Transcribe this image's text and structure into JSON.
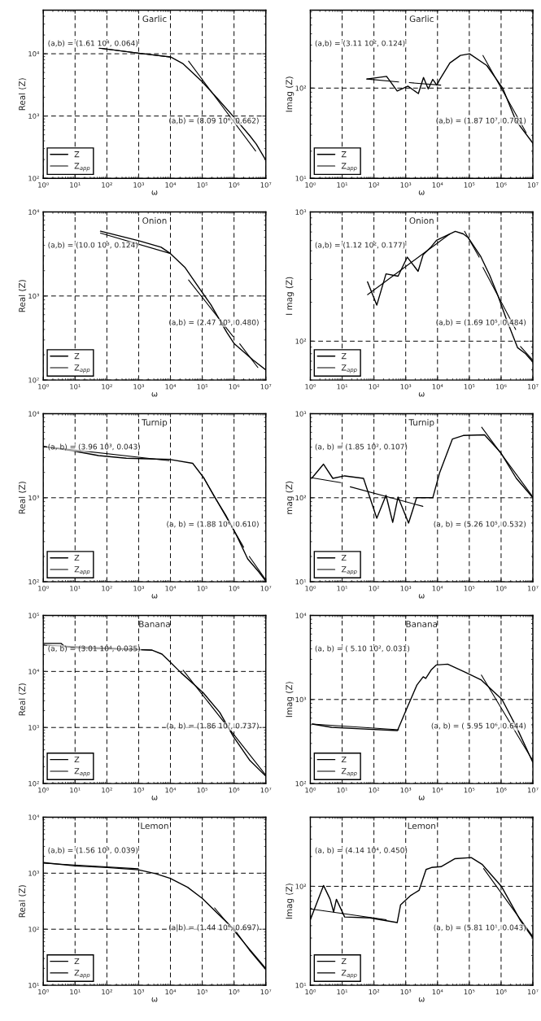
{
  "chart_data": [
    {
      "type": "line",
      "title": "Garlic",
      "xlabel": "ω",
      "ylabel": "Real (Z)",
      "log": "xy",
      "grid": true,
      "legend": "bottom left",
      "xlim": [
        1,
        10000000
      ],
      "ylim": [
        100,
        50000
      ],
      "xticks": [
        {
          "value": 1,
          "label": "10⁰"
        },
        {
          "value": 10,
          "label": "10¹"
        },
        {
          "value": 100,
          "label": "10²"
        },
        {
          "value": 1000,
          "label": "10³"
        },
        {
          "value": 10000,
          "label": "10⁴"
        },
        {
          "value": 100000,
          "label": "10⁵"
        },
        {
          "value": 1000000,
          "label": "10⁶"
        },
        {
          "value": 10000000,
          "label": "10⁷"
        }
      ],
      "yticks": [
        {
          "value": 100,
          "label": "10²"
        },
        {
          "value": 1000,
          "label": "10³"
        },
        {
          "value": 10000,
          "label": "10⁴"
        }
      ],
      "series": [
        {
          "name": "Z",
          "color": "#000000",
          "x": [
            58,
            1000,
            10000,
            25100,
            100000,
            316000,
            1000000,
            3160000,
            5010000,
            10000000
          ],
          "values": [
            12300,
            10200,
            8900,
            6900,
            3550,
            1860,
            955,
            480,
            355,
            195
          ]
        },
        {
          "name": "Z$_{app}$",
          "color": "#000000",
          "x": [
            58,
            10000
          ],
          "values": [
            12300,
            8800
          ]
        },
        {
          "color": "#000000",
          "x": [
            37200,
            4790000
          ],
          "values": [
            7600,
            275
          ]
        }
      ],
      "annotations": [
        "(a,b) = (1.61 10⁴, 0.064)",
        "(a,b) = (8.09 10⁶, 0.662)"
      ]
    },
    {
      "type": "line",
      "title": "Garlic",
      "xlabel": "ω",
      "ylabel": "Imag (Z)",
      "log": "xy",
      "grid": true,
      "legend": "bottom left",
      "xlim": [
        1,
        10000000
      ],
      "ylim": [
        10,
        730
      ],
      "xticks": [
        {
          "value": 1,
          "label": "10⁰"
        },
        {
          "value": 10,
          "label": "10¹"
        },
        {
          "value": 100,
          "label": "10²"
        },
        {
          "value": 1000,
          "label": "10³"
        },
        {
          "value": 10000,
          "label": "10⁴"
        },
        {
          "value": 100000,
          "label": "10⁵"
        },
        {
          "value": 1000000,
          "label": "10⁶"
        },
        {
          "value": 10000000,
          "label": "10⁷"
        }
      ],
      "yticks": [
        {
          "value": 10,
          "label": "10¹"
        },
        {
          "value": 100,
          "label": "10²"
        }
      ],
      "series": [
        {
          "name": "Z",
          "color": "#000000",
          "x": [
            60,
            250,
            540,
            1170,
            2500,
            3630,
            5100,
            7100,
            9500,
            11500,
            24500,
            52500,
            102000,
            355000,
            1120000,
            2880000,
            10000000
          ],
          "values": [
            126,
            135,
            93,
            105,
            87,
            131,
            98,
            125,
            108,
            123,
            190,
            230,
            240,
            178,
            100,
            44,
            24.5
          ]
        },
        {
          "name": "Z$_{app}$",
          "color": "#000000",
          "x": [
            60,
            600
          ],
          "values": [
            126,
            117
          ]
        },
        {
          "color": "#000000",
          "x": [
            1290,
            12600
          ],
          "values": [
            115,
            108
          ]
        },
        {
          "color": "#000000",
          "x": [
            269000,
            6170000
          ],
          "values": [
            230,
            32
          ]
        }
      ],
      "annotations": [
        "(a,b) = (3.11 10², 0.124)",
        "(a,b) = (1.87 10⁷, 0.701)"
      ]
    },
    {
      "type": "line",
      "title": "Onion",
      "xlabel": "ω",
      "ylabel": "Real (Z)",
      "log": "xy",
      "grid": true,
      "legend": "bottom left",
      "xlim": [
        1,
        10000000
      ],
      "ylim": [
        100,
        10000
      ],
      "xticks": [
        {
          "value": 1,
          "label": "10⁰"
        },
        {
          "value": 10,
          "label": "10¹"
        },
        {
          "value": 100,
          "label": "10²"
        },
        {
          "value": 1000,
          "label": "10³"
        },
        {
          "value": 10000,
          "label": "10⁴"
        },
        {
          "value": 100000,
          "label": "10⁵"
        },
        {
          "value": 1000000,
          "label": "10⁶"
        },
        {
          "value": 10000000,
          "label": "10⁷"
        }
      ],
      "yticks": [
        {
          "value": 100,
          "label": "10²"
        },
        {
          "value": 1000,
          "label": "10³"
        },
        {
          "value": 10000,
          "label": "10⁴"
        }
      ],
      "series": [
        {
          "name": "Z",
          "color": "#000000",
          "x": [
            63,
            1000,
            5100,
            10000,
            28200,
            87100,
            186000,
            589000,
            1020000,
            3890000,
            10000000
          ],
          "values": [
            5900,
            4550,
            3800,
            3200,
            2200,
            1190,
            790,
            370,
            270,
            174,
            132
          ]
        },
        {
          "name": "Z$_{app}$",
          "color": "#000000",
          "x": [
            63,
            10000
          ],
          "values": [
            5600,
            3200
          ]
        },
        {
          "color": "#000000",
          "x": [
            37200,
            933000
          ],
          "values": [
            1550,
            330
          ]
        },
        {
          "color": "#000000",
          "x": [
            1510000,
            5620000
          ],
          "values": [
            270,
            141
          ]
        }
      ],
      "annotations": [
        "(a,b) = (10.0 10³, 0.124)",
        "(a,b) = (2.47 10⁵, 0.480)"
      ]
    },
    {
      "type": "line",
      "title": "Onion",
      "xlabel": "ω",
      "ylabel": "I mag (Z)",
      "log": "xy",
      "grid": true,
      "legend": "bottom left",
      "xlim": [
        1,
        10000000
      ],
      "ylim": [
        50,
        1000
      ],
      "xticks": [
        {
          "value": 1,
          "label": "10⁰"
        },
        {
          "value": 10,
          "label": "10¹"
        },
        {
          "value": 100,
          "label": "10²"
        },
        {
          "value": 1000,
          "label": "10³"
        },
        {
          "value": 10000,
          "label": "10⁴"
        },
        {
          "value": 100000,
          "label": "10⁵"
        },
        {
          "value": 1000000,
          "label": "10⁶"
        },
        {
          "value": 10000000,
          "label": "10⁷"
        }
      ],
      "yticks": [
        {
          "value": 100,
          "label": "10²"
        },
        {
          "value": 1000,
          "label": "10³"
        }
      ],
      "series": [
        {
          "name": "Z",
          "color": "#000000",
          "x": [
            63,
            123,
            240,
            575,
            1120,
            2450,
            3550,
            6300,
            9300,
            36300,
            64600,
            93300,
            224000,
            437000,
            776000,
            1410000,
            3310000,
            5890000,
            10000000
          ],
          "values": [
            288,
            190,
            332,
            318,
            447,
            347,
            468,
            537,
            603,
            708,
            676,
            631,
            457,
            324,
            229,
            152,
            89,
            80,
            69
          ]
        },
        {
          "name": "Z$_{app}$",
          "color": "#000000",
          "x": [
            63,
            24500
          ],
          "values": [
            229,
            676
          ]
        },
        {
          "color": "#000000",
          "x": [
            70800,
            204000
          ],
          "values": [
            708,
            447
          ]
        },
        {
          "color": "#000000",
          "x": [
            269000,
            2880000
          ],
          "values": [
            372,
            123
          ]
        },
        {
          "color": "#000000",
          "x": [
            4070000,
            10000000
          ],
          "values": [
            91,
            71
          ]
        }
      ],
      "annotations": [
        "(a,b) = (1.12 10², 0.177)",
        "(a,b) = (1.69 10⁵, 0.484)"
      ]
    },
    {
      "type": "line",
      "title": "Turnip",
      "xlabel": "ω",
      "ylabel": "Real (Z)",
      "log": "xy",
      "grid": true,
      "legend": "bottom left",
      "xlim": [
        1,
        10000000
      ],
      "ylim": [
        100,
        10000
      ],
      "xticks": [
        {
          "value": 1,
          "label": "10⁰"
        },
        {
          "value": 10,
          "label": "10¹"
        },
        {
          "value": 100,
          "label": "10²"
        },
        {
          "value": 1000,
          "label": "10³"
        },
        {
          "value": 10000,
          "label": "10⁴"
        },
        {
          "value": 100000,
          "label": "10⁵"
        },
        {
          "value": 1000000,
          "label": "10⁶"
        },
        {
          "value": 10000000,
          "label": "10⁷"
        }
      ],
      "yticks": [
        {
          "value": 100,
          "label": "10²"
        },
        {
          "value": 1000,
          "label": "10³"
        },
        {
          "value": 10000,
          "label": "10⁴"
        }
      ],
      "series": [
        {
          "name": "Z",
          "color": "#000000",
          "x": [
            1,
            7.4,
            55,
            410,
            10000,
            50100,
            110000,
            245000,
            550000,
            1230000,
            2690000,
            6030000,
            10000000
          ],
          "values": [
            4070,
            3650,
            3170,
            2950,
            2850,
            2570,
            1740,
            1020,
            620,
            350,
            187,
            131,
            102
          ]
        },
        {
          "name": "Z$_{app}$",
          "color": "#000000",
          "x": [
            1,
            9100
          ],
          "values": [
            4070,
            2760
          ]
        },
        {
          "color": "#000000",
          "x": [
            110000,
            2000000
          ],
          "values": [
            1740,
            258
          ]
        },
        {
          "color": "#000000",
          "x": [
            3020000,
            10000000
          ],
          "values": [
            200,
            105
          ]
        }
      ],
      "annotations": [
        "(a, b) = (3.96 10³, 0.043)",
        "(a, b) = (1.88 10⁶, 0.610)"
      ]
    },
    {
      "type": "line",
      "title": "Turnip",
      "xlabel": "ω",
      "ylabel": "mag (Z)",
      "log": "xy",
      "grid": true,
      "legend": "bottom left",
      "xlim": [
        1,
        10000000
      ],
      "ylim": [
        10,
        1000
      ],
      "xticks": [
        {
          "value": 1,
          "label": "10⁰"
        },
        {
          "value": 10,
          "label": "10¹"
        },
        {
          "value": 100,
          "label": "10²"
        },
        {
          "value": 1000,
          "label": "10³"
        },
        {
          "value": 10000,
          "label": "10⁴"
        },
        {
          "value": 100000,
          "label": "10⁵"
        },
        {
          "value": 1000000,
          "label": "10⁶"
        },
        {
          "value": 10000000,
          "label": "10⁷"
        }
      ],
      "yticks": [
        {
          "value": 10,
          "label": "10¹"
        },
        {
          "value": 100,
          "label": "10²"
        },
        {
          "value": 1000,
          "label": "10³"
        }
      ],
      "series": [
        {
          "name": "Z",
          "color": "#000000",
          "x": [
            1.1,
            2.6,
            5.1,
            12,
            47,
            123,
            240,
            390,
            575,
            1230,
            2200,
            7100,
            11500,
            29500,
            64600,
            302000,
            955000,
            3020000,
            10000000
          ],
          "values": [
            170,
            251,
            170,
            182,
            170,
            57,
            107,
            51,
            102,
            50,
            100,
            100,
            195,
            500,
            550,
            560,
            347,
            170,
            100
          ]
        },
        {
          "name": "Z$_{app}$",
          "color": "#000000",
          "x": [
            1,
            9.1
          ],
          "values": [
            174,
            151
          ]
        },
        {
          "color": "#000000",
          "x": [
            18,
            3470
          ],
          "values": [
            135,
            79
          ]
        },
        {
          "color": "#000000",
          "x": [
            245000,
            10000000
          ],
          "values": [
            690,
            102
          ]
        }
      ],
      "annotations": [
        "(a, b) = (1.85 10², 0.107)",
        "(a, b) = (5.26 10⁵, 0.532)"
      ]
    },
    {
      "type": "line",
      "title": "Banana",
      "xlabel": "ω",
      "ylabel": "Real (Z)",
      "log": "xy",
      "grid": true,
      "legend": "bottom left",
      "xlim": [
        1,
        10000000
      ],
      "ylim": [
        100,
        100000
      ],
      "xticks": [
        {
          "value": 1,
          "label": "10⁰"
        },
        {
          "value": 10,
          "label": "10¹"
        },
        {
          "value": 100,
          "label": "10²"
        },
        {
          "value": 1000,
          "label": "10³"
        },
        {
          "value": 10000,
          "label": "10⁴"
        },
        {
          "value": 100000,
          "label": "10⁵"
        },
        {
          "value": 1000000,
          "label": "10⁶"
        },
        {
          "value": 10000000,
          "label": "10⁷"
        }
      ],
      "yticks": [
        {
          "value": 100,
          "label": "10²"
        },
        {
          "value": 1000,
          "label": "10³"
        },
        {
          "value": 10000,
          "label": "10⁴"
        },
        {
          "value": 100000,
          "label": "10⁵"
        }
      ],
      "series": [
        {
          "name": "Z",
          "color": "#000000",
          "x": [
            1,
            3.6,
            4.9,
            25,
            270,
            2630,
            5400,
            9800,
            21400,
            107000,
            355000,
            955000,
            3160000,
            10000000
          ],
          "values": [
            31600,
            31600,
            27600,
            25700,
            25100,
            24000,
            20400,
            14700,
            9500,
            4170,
            1860,
            690,
            257,
            135
          ]
        },
        {
          "name": "Z$_{app}$",
          "color": "#000000",
          "x": [
            1,
            2630
          ],
          "values": [
            29500,
            24000
          ]
        },
        {
          "color": "#000000",
          "x": [
            25100,
            10000000
          ],
          "values": [
            10500,
            141
          ]
        }
      ],
      "annotations": [
        "(a, b) = (3.01 10⁴, 0.035)",
        "(a, b) = (1.86 10⁷, 0.737)"
      ]
    },
    {
      "type": "line",
      "title": "Banana",
      "xlabel": "ω",
      "ylabel": "Imag (Z)",
      "log": "xy",
      "grid": true,
      "legend": "bottom left",
      "xlim": [
        1,
        10000000
      ],
      "ylim": [
        100,
        10000
      ],
      "xticks": [
        {
          "value": 1,
          "label": "10⁰"
        },
        {
          "value": 10,
          "label": "10¹"
        },
        {
          "value": 100,
          "label": "10²"
        },
        {
          "value": 1000,
          "label": "10³"
        },
        {
          "value": 10000,
          "label": "10⁴"
        },
        {
          "value": 100000,
          "label": "10⁵"
        },
        {
          "value": 1000000,
          "label": "10⁶"
        },
        {
          "value": 10000000,
          "label": "10⁷"
        }
      ],
      "yticks": [
        {
          "value": 100,
          "label": "10²"
        },
        {
          "value": 1000,
          "label": "10³"
        },
        {
          "value": 10000,
          "label": "10⁴"
        }
      ],
      "series": [
        {
          "name": "Z",
          "color": "#000000",
          "x": [
            1.15,
            4.7,
            37,
            550,
            1070,
            2240,
            3550,
            4270,
            6300,
            9100,
            20900,
            77600,
            240000,
            1070000,
            3240000,
            10000000
          ],
          "values": [
            510,
            467,
            447,
            427,
            776,
            1480,
            1860,
            1780,
            2240,
            2570,
            2630,
            2090,
            1700,
            1000,
            447,
            178
          ]
        },
        {
          "name": "Z$_{app}$",
          "color": "#000000",
          "x": [
            1.15,
            600
          ],
          "values": [
            510,
            436
          ]
        },
        {
          "color": "#000000",
          "x": [
            240000,
            10000000
          ],
          "values": [
            1950,
            186
          ]
        }
      ],
      "annotations": [
        "(a, b) = ( 5.10 10², 0.031)",
        "(a, b) = ( 5.95 10⁶, 0.644)"
      ]
    },
    {
      "type": "line",
      "title": "Lemon",
      "xlabel": "ω",
      "ylabel": "Real (Z)",
      "log": "xy",
      "grid": true,
      "legend": "bottom left",
      "xlim": [
        1,
        10000000
      ],
      "ylim": [
        10,
        10000
      ],
      "xticks": [
        {
          "value": 1,
          "label": "10⁰"
        },
        {
          "value": 10,
          "label": "10¹"
        },
        {
          "value": 100,
          "label": "10²"
        },
        {
          "value": 1000,
          "label": "10³"
        },
        {
          "value": 10000,
          "label": "10⁴"
        },
        {
          "value": 100000,
          "label": "10⁵"
        },
        {
          "value": 1000000,
          "label": "10⁶"
        },
        {
          "value": 10000000,
          "label": "10⁷"
        }
      ],
      "yticks": [
        {
          "value": 10,
          "label": "10¹"
        },
        {
          "value": 100,
          "label": "10²"
        },
        {
          "value": 1000,
          "label": "10³"
        },
        {
          "value": 10000,
          "label": "10⁴"
        }
      ],
      "series": [
        {
          "name": "Z",
          "color": "#000000",
          "x": [
            1,
            10,
            105,
            980,
            3400,
            9800,
            34700,
            100000,
            295000,
            1000000,
            3020000,
            10000000
          ],
          "values": [
            1550,
            1350,
            1260,
            1150,
            980,
            810,
            560,
            355,
            195,
            100,
            43,
            19
          ]
        },
        {
          "name": "Z$_{app}$",
          "color": "#000000",
          "x": [
            1,
            980
          ],
          "values": [
            1510,
            1200
          ]
        },
        {
          "color": "#000000",
          "x": [
            245000,
            10000000
          ],
          "values": [
            240,
            20
          ]
        }
      ],
      "annotations": [
        "(a,b) = (1.56 10³, 0.039)",
        "(a|b) = (1.44 10⁶, 0.697)"
      ]
    },
    {
      "type": "line",
      "title": "Lemon",
      "xlabel": "ω",
      "ylabel": "Imag (Z)",
      "log": "xy",
      "grid": true,
      "legend": "bottom left",
      "xlim": [
        1,
        10000000
      ],
      "ylim": [
        10,
        500
      ],
      "xticks": [
        {
          "value": 1,
          "label": "10⁰"
        },
        {
          "value": 10,
          "label": "10¹"
        },
        {
          "value": 100,
          "label": "10²"
        },
        {
          "value": 1000,
          "label": "10³"
        },
        {
          "value": 10000,
          "label": "10⁴"
        },
        {
          "value": 100000,
          "label": "10⁵"
        },
        {
          "value": 1000000,
          "label": "10⁶"
        },
        {
          "value": 10000000,
          "label": "10⁷"
        }
      ],
      "yticks": [
        {
          "value": 10,
          "label": "10¹"
        },
        {
          "value": 100,
          "label": "10²"
        }
      ],
      "series": [
        {
          "name": "Z",
          "color": "#000000",
          "x": [
            1,
            2.6,
            4.2,
            5.4,
            6.6,
            12,
            74,
            540,
            690,
            1450,
            2630,
            4370,
            6500,
            12900,
            34700,
            115000,
            257000,
            1020000,
            4070000,
            10000000
          ],
          "values": [
            46,
            102,
            74,
            55,
            74,
            49,
            48,
            43,
            65,
            81,
            91,
            148,
            155,
            158,
            190,
            195,
            166,
            100,
            45,
            30
          ]
        },
        {
          "name": "Z$_{app}$",
          "color": "#000000",
          "x": [
            1,
            245
          ],
          "values": [
            59,
            46
          ]
        },
        {
          "color": "#000000",
          "x": [
            282000,
            10000000
          ],
          "values": [
            151,
            31
          ]
        }
      ],
      "annotations": [
        "(a, b) = (4.14 10⁴, 0.450)",
        "(a, b) = (5.81 10¹, 0.043)"
      ]
    }
  ]
}
